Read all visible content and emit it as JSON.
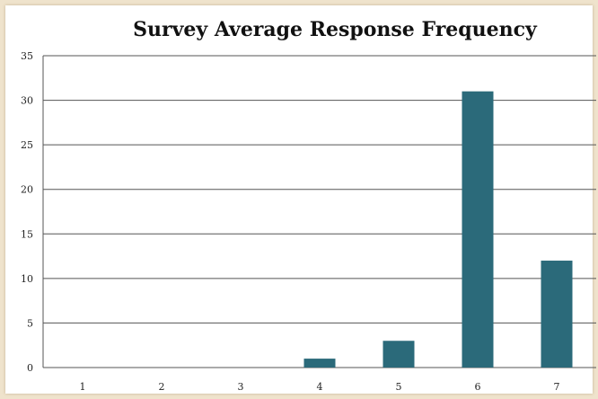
{
  "chart_data": {
    "type": "bar",
    "title": "Survey Average Response Frequency",
    "xlabel": "",
    "ylabel": "",
    "categories": [
      "1",
      "2",
      "3",
      "4",
      "5",
      "6",
      "7"
    ],
    "values": [
      0,
      0,
      0,
      1,
      3,
      31,
      12
    ],
    "ylim": [
      0,
      35
    ],
    "yticks": [
      0,
      5,
      10,
      15,
      20,
      25,
      30,
      35
    ],
    "grid": true,
    "bar_color": "#2b6a7a",
    "grid_color": "#555555"
  }
}
